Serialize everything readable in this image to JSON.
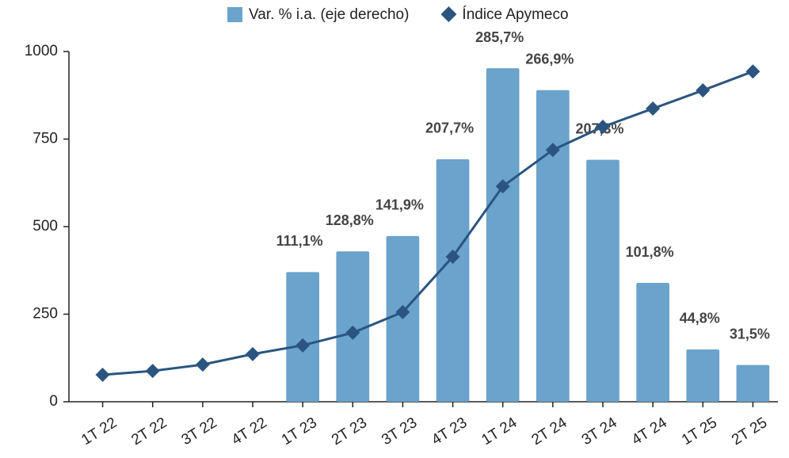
{
  "chart_data": {
    "type": "bar-line",
    "categories": [
      "1T 22",
      "2T 22",
      "3T 22",
      "4T 22",
      "1T 23",
      "2T 23",
      "3T 23",
      "4T 23",
      "1T 24",
      "2T 24",
      "3T 24",
      "4T 24",
      "1T 25",
      "2T 25"
    ],
    "series": [
      {
        "name": "Var. % i.a. (eje derecho)",
        "type": "bar",
        "axis": "y2",
        "color": "#6aa3cb",
        "values": [
          null,
          null,
          null,
          null,
          111.1,
          128.8,
          141.9,
          207.7,
          285.7,
          266.9,
          207.3,
          101.8,
          44.8,
          31.5
        ],
        "value_labels": [
          null,
          null,
          null,
          null,
          "111,1%",
          "128,8%",
          "141,9%",
          "207,7%",
          "285,7%",
          "266,9%",
          "207,3%",
          "101,8%",
          "44,8%",
          "31,5%"
        ]
      },
      {
        "name": "Índice Apymeco",
        "type": "line",
        "color": "#2b5580",
        "values": [
          77,
          88,
          106,
          136,
          161,
          197,
          256,
          414,
          615,
          719,
          785,
          837,
          889,
          943
        ]
      }
    ],
    "ylim": [
      0,
      1000
    ],
    "yticks": [
      0,
      250,
      500,
      750,
      1000
    ],
    "y2lim": [
      0,
      300
    ]
  }
}
